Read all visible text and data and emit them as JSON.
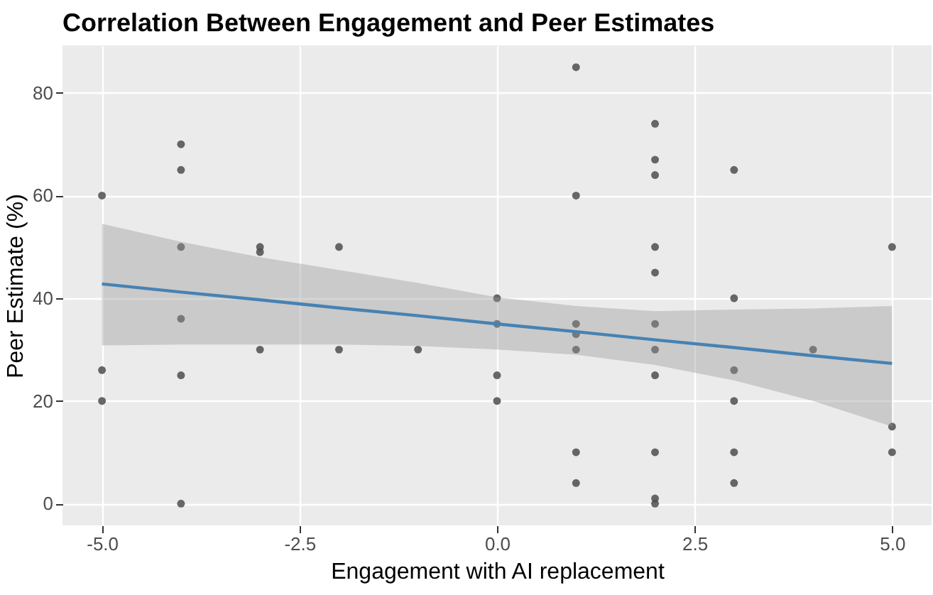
{
  "chart_data": {
    "type": "scatter",
    "title": "Correlation Between Engagement and Peer Estimates",
    "xlabel": "Engagement with AI replacement",
    "ylabel": "Peer Estimate (%)",
    "xlim": [
      -5.5,
      5.5
    ],
    "xticks": [
      {
        "value": -5,
        "label": "-5.0"
      },
      {
        "value": -2.5,
        "label": "-2.5"
      },
      {
        "value": 0,
        "label": "0.0"
      },
      {
        "value": 2.5,
        "label": "2.5"
      },
      {
        "value": 5,
        "label": "5.0"
      }
    ],
    "ylim": [
      -4.25,
      89.25
    ],
    "yticks": [
      0,
      20,
      40,
      60,
      80
    ],
    "grid": true,
    "series": [
      {
        "marker": "circle",
        "color": "#4d4d4d",
        "x": [
          -5,
          -5,
          -5,
          -4,
          -4,
          -4,
          -4,
          -4,
          -4,
          -3,
          -3,
          -3,
          -2,
          -2,
          -1,
          0,
          0,
          0,
          0,
          1,
          1,
          1,
          1,
          1,
          1,
          1,
          2,
          2,
          2,
          2,
          2,
          2,
          2,
          2,
          2,
          2,
          2,
          3,
          3,
          3,
          3,
          3,
          3,
          4,
          5,
          5,
          5
        ],
        "values": [
          60,
          26,
          20,
          70,
          65,
          50,
          36,
          25,
          0,
          50,
          49,
          30,
          50,
          30,
          30,
          40,
          35,
          25,
          20,
          85,
          60,
          35,
          33,
          30,
          10,
          4,
          74,
          67,
          64,
          50,
          45,
          35,
          30,
          25,
          10,
          1,
          0,
          65,
          40,
          26,
          20,
          10,
          4,
          30,
          50,
          15,
          10
        ]
      },
      {
        "type": "line",
        "color": "#4682b4",
        "line_style": "solid",
        "x": [
          -5,
          -4,
          -3,
          -2,
          -1,
          0,
          1,
          2,
          3,
          4,
          5
        ],
        "values": [
          42.8,
          41.2,
          39.7,
          38.1,
          36.6,
          35.0,
          33.5,
          31.9,
          30.4,
          28.8,
          27.3
        ],
        "lower": [
          30.8,
          31,
          31,
          31,
          30.7,
          30,
          29,
          27,
          24,
          20,
          15
        ],
        "upper": [
          54.5,
          51,
          48,
          45.5,
          43,
          40.2,
          38.5,
          37.5,
          37.8,
          38,
          38.5
        ]
      }
    ]
  }
}
